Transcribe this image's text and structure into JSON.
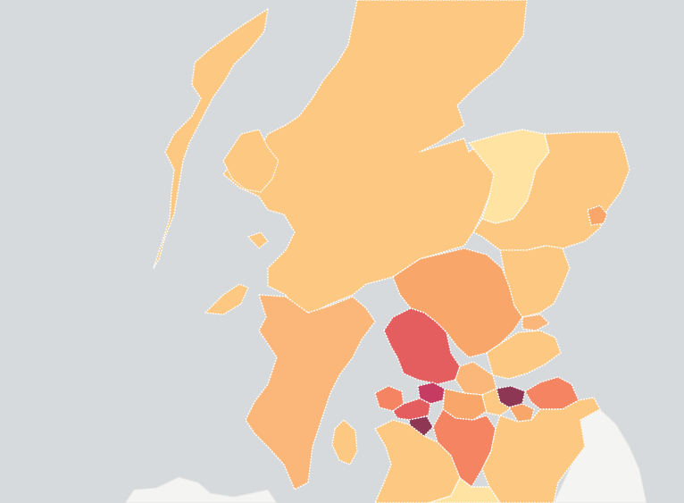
{
  "map": {
    "colors": {
      "sea": "#d7dadc",
      "england": "#f4f4f3",
      "very_low": "#ffe3a2",
      "low": "#fdc982",
      "medium_low": "#fbb779",
      "medium": "#f9a66a",
      "medium_high": "#f58463",
      "high": "#e45d5f",
      "very_high": "#c63b62",
      "extreme": "#8e3755"
    }
  }
}
